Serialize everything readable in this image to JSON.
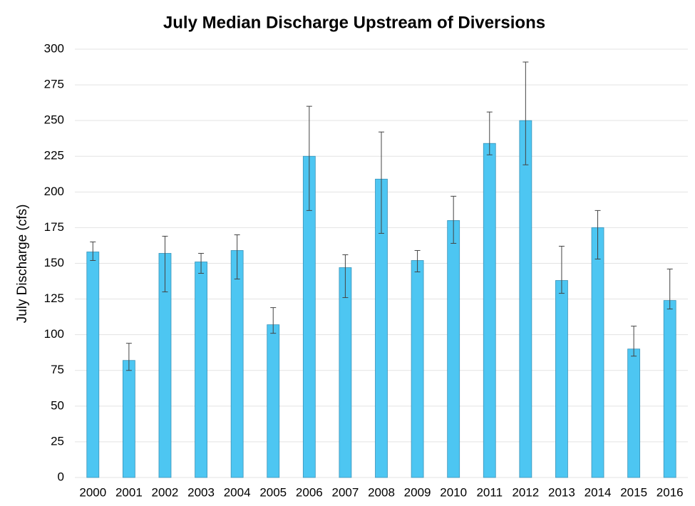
{
  "chart_data": {
    "type": "bar",
    "title": "July Median Discharge Upstream of Diversions",
    "y_label": "July Discharge (cfs)",
    "categories": [
      "2000",
      "2001",
      "2002",
      "2003",
      "2004",
      "2005",
      "2006",
      "2007",
      "2008",
      "2009",
      "2010",
      "2011",
      "2012",
      "2013",
      "2014",
      "2015",
      "2016"
    ],
    "values": [
      158,
      82,
      157,
      151,
      159,
      107,
      225,
      147,
      209,
      152,
      180,
      234,
      250,
      138,
      175,
      90,
      124
    ],
    "error_lower": [
      152,
      75,
      130,
      143,
      139,
      101,
      187,
      126,
      171,
      144,
      164,
      226,
      219,
      129,
      153,
      85,
      118
    ],
    "error_upper": [
      165,
      94,
      169,
      157,
      170,
      119,
      260,
      156,
      242,
      159,
      197,
      256,
      291,
      162,
      187,
      106,
      146
    ],
    "color": "#4dc6f2",
    "ylim": [
      0,
      300
    ],
    "yticks": [
      0,
      25,
      50,
      75,
      100,
      125,
      150,
      175,
      200,
      225,
      250,
      275,
      300
    ],
    "grid": true
  }
}
